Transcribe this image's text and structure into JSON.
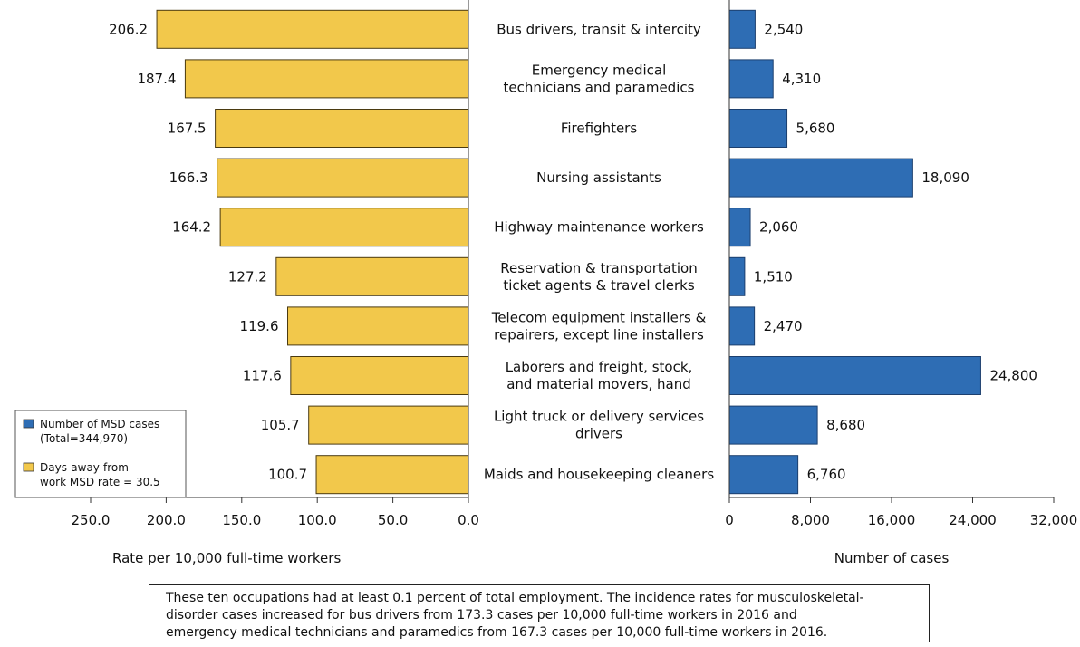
{
  "chart_data": {
    "type": "bar",
    "categories": [
      [
        "Bus drivers, transit & intercity"
      ],
      [
        "Emergency medical",
        "technicians and paramedics"
      ],
      [
        "Firefighters"
      ],
      [
        "Nursing assistants"
      ],
      [
        "Highway maintenance workers"
      ],
      [
        "Reservation & transportation",
        "ticket agents & travel clerks"
      ],
      [
        "Telecom equipment installers &",
        "repairers, except line installers"
      ],
      [
        "Laborers and freight, stock,",
        "and material movers, hand"
      ],
      [
        "Light truck or delivery services",
        "drivers"
      ],
      [
        "Maids and housekeeping cleaners"
      ]
    ],
    "series": [
      {
        "name": "Days-away-from-work MSD rate = 30.5",
        "values": [
          206.2,
          187.4,
          167.5,
          166.3,
          164.2,
          127.2,
          119.6,
          117.6,
          105.7,
          100.7
        ],
        "labels": [
          "206.2",
          "187.4",
          "167.5",
          "166.3",
          "164.2",
          "127.2",
          "119.6",
          "117.6",
          "105.7",
          "100.7"
        ],
        "color": "#f2c84b"
      },
      {
        "name": "Number of MSD cases (Total=344,970)",
        "values": [
          2540,
          4310,
          5680,
          18090,
          2060,
          1510,
          2470,
          24800,
          8680,
          6760
        ],
        "labels": [
          "2,540",
          "4,310",
          "5,680",
          "18,090",
          "2,060",
          "1,510",
          "2,470",
          "24,800",
          "8,680",
          "6,760"
        ],
        "color": "#2e6db4"
      }
    ],
    "left_axis": {
      "label": "Rate per 10,000 full-time workers",
      "ticks": [
        250,
        200,
        150,
        100,
        50,
        0
      ],
      "tick_labels": [
        "250.0",
        "200.0",
        "150.0",
        "100.0",
        "50.0",
        "0.0"
      ],
      "range": [
        250,
        0
      ]
    },
    "right_axis": {
      "label": "Number of cases",
      "ticks": [
        0,
        8000,
        16000,
        24000,
        32000
      ],
      "tick_labels": [
        "0",
        "8,000",
        "16,000",
        "24,000",
        "32,000"
      ],
      "range": [
        0,
        32000
      ]
    },
    "legend": {
      "placement": "bottom-left",
      "items": [
        {
          "lines": [
            "Number of MSD cases",
            "(Total=344,970)"
          ],
          "color": "#2e6db4"
        },
        {
          "lines": [
            "Days-away-from-",
            "work MSD rate = 30.5"
          ],
          "color": "#f2c84b"
        }
      ]
    },
    "grid": false
  },
  "note": {
    "lines": [
      "These ten occupations had at least 0.1 percent of total employment. The incidence rates for musculoskeletal-",
      "disorder cases increased for bus drivers from 173.3 cases per 10,000 full-time workers in 2016 and",
      "emergency medical technicians and paramedics from 167.3 cases per 10,000 full-time workers in 2016."
    ]
  }
}
